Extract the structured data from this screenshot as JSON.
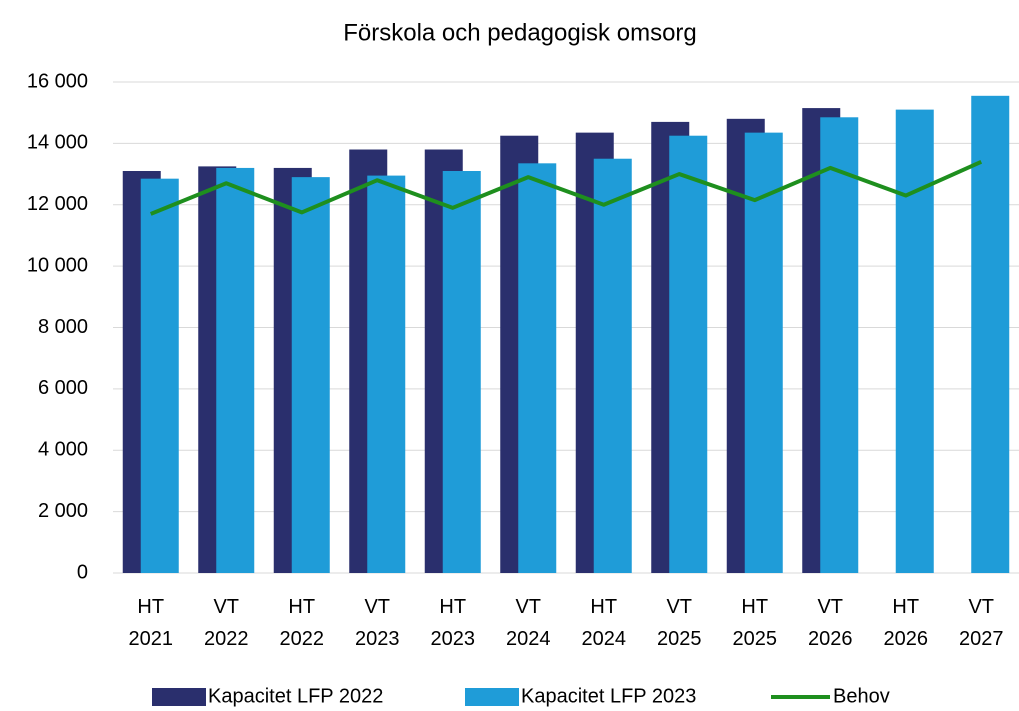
{
  "chart_data": {
    "type": "bar-line",
    "title": "Förskola och pedagogisk omsorg",
    "categories": [
      [
        "HT",
        "2021"
      ],
      [
        "VT",
        "2022"
      ],
      [
        "HT",
        "2022"
      ],
      [
        "VT",
        "2023"
      ],
      [
        "HT",
        "2023"
      ],
      [
        "VT",
        "2024"
      ],
      [
        "HT",
        "2024"
      ],
      [
        "VT",
        "2025"
      ],
      [
        "HT",
        "2025"
      ],
      [
        "VT",
        "2026"
      ],
      [
        "HT",
        "2026"
      ],
      [
        "VT",
        "2027"
      ]
    ],
    "series": [
      {
        "name": "Kapacitet LFP 2022",
        "color": "#2a2f6d",
        "kind": "bar",
        "values": [
          13100,
          13250,
          13200,
          13800,
          13800,
          14250,
          14350,
          14700,
          14800,
          15150,
          null,
          null
        ]
      },
      {
        "name": "Kapacitet LFP 2023",
        "color": "#1f9cd8",
        "kind": "bar",
        "values": [
          12850,
          13200,
          12900,
          12950,
          13100,
          13350,
          13500,
          14250,
          14350,
          14850,
          15100,
          15550
        ]
      },
      {
        "name": "Behov",
        "color": "#1e8f1e",
        "kind": "line",
        "values": [
          11700,
          12700,
          11750,
          12800,
          11900,
          12900,
          12000,
          13000,
          12150,
          13200,
          12300,
          13400
        ]
      }
    ],
    "ylim": [
      0,
      16000
    ],
    "yticks": [
      0,
      {
        "value": 2000,
        "label": "2 000"
      },
      {
        "value": 4000,
        "label": "4 000"
      },
      {
        "value": 6000,
        "label": "6 000"
      },
      {
        "value": 8000,
        "label": "8 000"
      },
      {
        "value": 10000,
        "label": "10 000"
      },
      {
        "value": 12000,
        "label": "12 000"
      },
      {
        "value": 14000,
        "label": "14 000"
      },
      {
        "value": 16000,
        "label": "16 000"
      }
    ],
    "grid": true
  }
}
